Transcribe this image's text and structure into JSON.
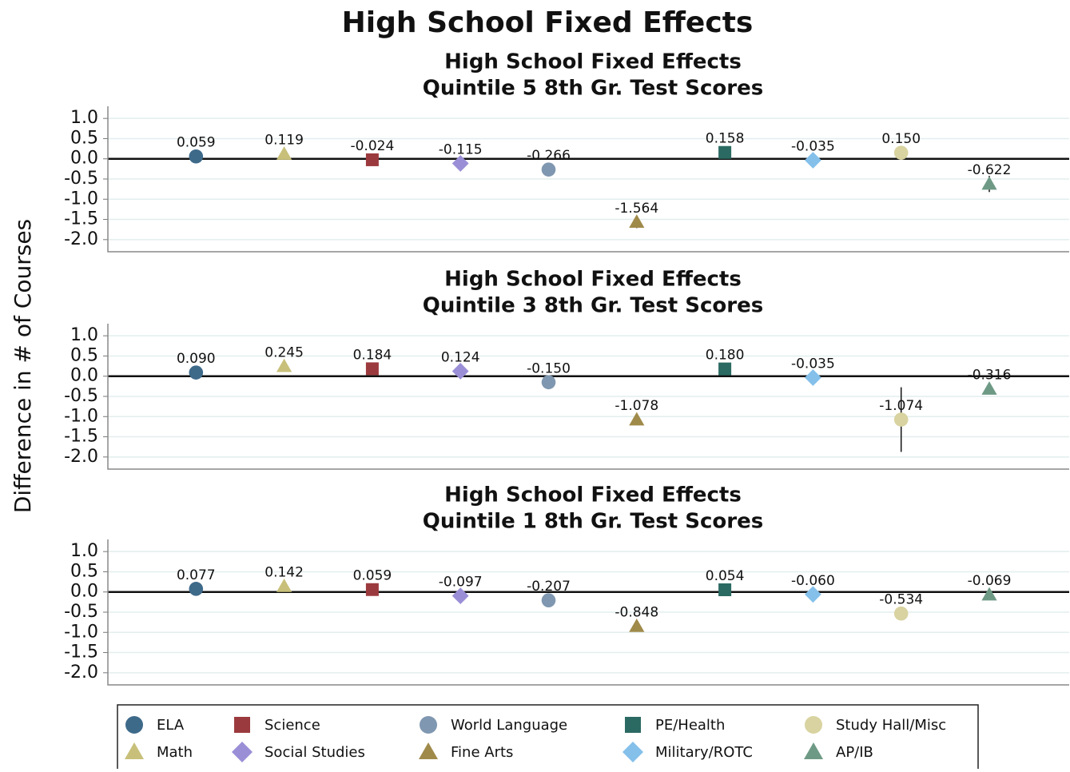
{
  "title": "High School Fixed Effects",
  "y_label": "Difference in # of Courses",
  "categories": [
    "ELA",
    "Math",
    "Science",
    "Social Studies",
    "World Language",
    "Fine Arts",
    "PE/Health",
    "Military/ROTC",
    "Study Hall/Misc",
    "AP/IB"
  ],
  "colors": [
    "#3e6a8a",
    "#c8c07a",
    "#9b3a3e",
    "#9a8fd6",
    "#7f97b0",
    "#a08a4a",
    "#2b6a62",
    "#84c0ea",
    "#d8d3a0",
    "#6e9a85"
  ],
  "markers": [
    "circle",
    "triangle",
    "square",
    "diamond",
    "circle",
    "triangle",
    "square",
    "diamond",
    "circle",
    "triangle"
  ],
  "ylim": [
    -2.3,
    1.3
  ],
  "yticks": [
    {
      "value": 1,
      "label": "1.0"
    },
    {
      "value": 0.5,
      "label": "0.5"
    },
    {
      "value": 0,
      "label": "0.0"
    },
    {
      "value": -0.5,
      "label": "-0.5"
    },
    {
      "value": -1,
      "label": "-1.0"
    },
    {
      "value": -1.5,
      "label": "-1.5"
    },
    {
      "value": -2,
      "label": "-2.0"
    }
  ],
  "grid": true,
  "chart_data": [
    {
      "type": "scatter",
      "title": [
        "High School Fixed Effects",
        "Quintile 5 8th Gr. Test Scores"
      ],
      "values": [
        0.059,
        0.119,
        -0.024,
        -0.115,
        -0.266,
        -1.564,
        0.158,
        -0.035,
        0.15,
        -0.622
      ],
      "value_labels": [
        "0.059",
        "0.119",
        "-0.024",
        "-0.115",
        "-0.266",
        "-1.564",
        "0.158",
        "-0.035",
        "0.150",
        "-0.622"
      ],
      "errors": [
        0.04,
        0.04,
        0.04,
        0.05,
        0.05,
        0.15,
        0.04,
        0.04,
        0.05,
        0.2
      ]
    },
    {
      "type": "scatter",
      "title": [
        "High School Fixed Effects",
        "Quintile 3 8th Gr. Test Scores"
      ],
      "values": [
        0.09,
        0.245,
        0.184,
        0.124,
        -0.15,
        -1.078,
        0.18,
        -0.035,
        -1.074,
        -0.316
      ],
      "value_labels": [
        "0.090",
        "0.245",
        "0.184",
        "0.124",
        "-0.150",
        "-1.078",
        "0.180",
        "-0.035",
        "-1.074",
        "-0.316"
      ],
      "errors": [
        0.05,
        0.05,
        0.05,
        0.1,
        0.05,
        0.1,
        0.04,
        0.04,
        0.8,
        0.06
      ]
    },
    {
      "type": "scatter",
      "title": [
        "High School Fixed Effects",
        "Quintile 1 8th Gr. Test Scores"
      ],
      "values": [
        0.077,
        0.142,
        0.059,
        -0.097,
        -0.207,
        -0.848,
        0.054,
        -0.06,
        -0.534,
        -0.069
      ],
      "value_labels": [
        "0.077",
        "0.142",
        "0.059",
        "-0.097",
        "-0.207",
        "-0.848",
        "0.054",
        "-0.060",
        "-0.534",
        "-0.069"
      ],
      "errors": [
        0.04,
        0.04,
        0.04,
        0.04,
        0.04,
        0.05,
        0.04,
        0.04,
        0.05,
        0.04
      ]
    }
  ]
}
